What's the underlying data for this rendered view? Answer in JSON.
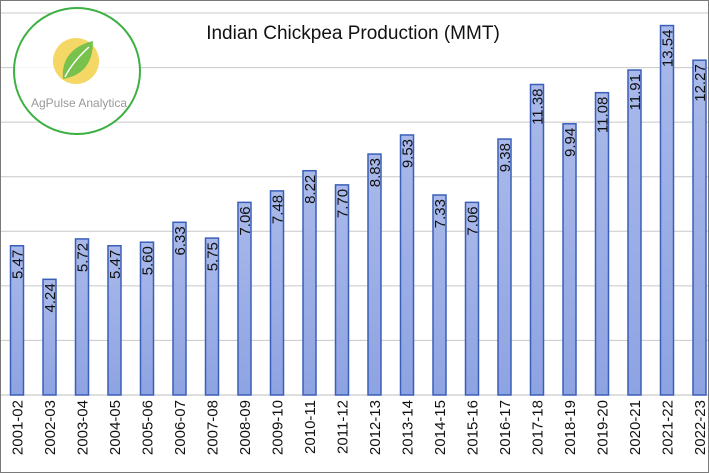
{
  "logo": {
    "text": "AgPulse Analytica"
  },
  "colors": {
    "bar_fill_top": "#a9b9ea",
    "bar_fill_bottom": "#8ea3e2",
    "bar_stroke": "#3a5fb8",
    "gridline": "#c8c8c8",
    "logo_ring": "#3cb043",
    "logo_sun": "#f2d04a",
    "logo_leaf": "#6cbf4a"
  },
  "chart_data": {
    "type": "bar",
    "title": "Indian Chickpea Production  (MMT)",
    "xlabel": "",
    "ylabel": "",
    "categories": [
      "2001-02",
      "2002-03",
      "2003-04",
      "2004-05",
      "2005-06",
      "2006-07",
      "2007-08",
      "2008-09",
      "2009-10",
      "2010-11",
      "2011-12",
      "2012-13",
      "2013-14",
      "2014-15",
      "2015-16",
      "2016-17",
      "2017-18",
      "2018-19",
      "2019-20",
      "2020-21",
      "2021-22",
      "2022-23"
    ],
    "series": [
      {
        "values": [
          5.47,
          4.24,
          5.72,
          5.47,
          5.6,
          6.33,
          5.75,
          7.06,
          7.48,
          8.22,
          7.7,
          8.83,
          9.53,
          7.33,
          7.06,
          9.38,
          11.38,
          9.94,
          11.08,
          11.91,
          13.54,
          12.27
        ],
        "labels": [
          "5.47",
          "4.24",
          "5.72",
          "5.47",
          "5.60",
          "6.33",
          "5.75",
          "7.06",
          "7.48",
          "8.22",
          "7.70",
          "8.83",
          "9.53",
          "7.33",
          "7.06",
          "9.38",
          "11.38",
          "9.94",
          "11.08",
          "11.91",
          "13.54",
          "12.27"
        ]
      }
    ],
    "ylim": [
      0,
      14
    ],
    "gridlines": [
      2,
      4,
      6,
      8,
      10,
      12,
      14
    ],
    "grid": true,
    "legend": "none",
    "value_axis_labels_shown": false
  }
}
